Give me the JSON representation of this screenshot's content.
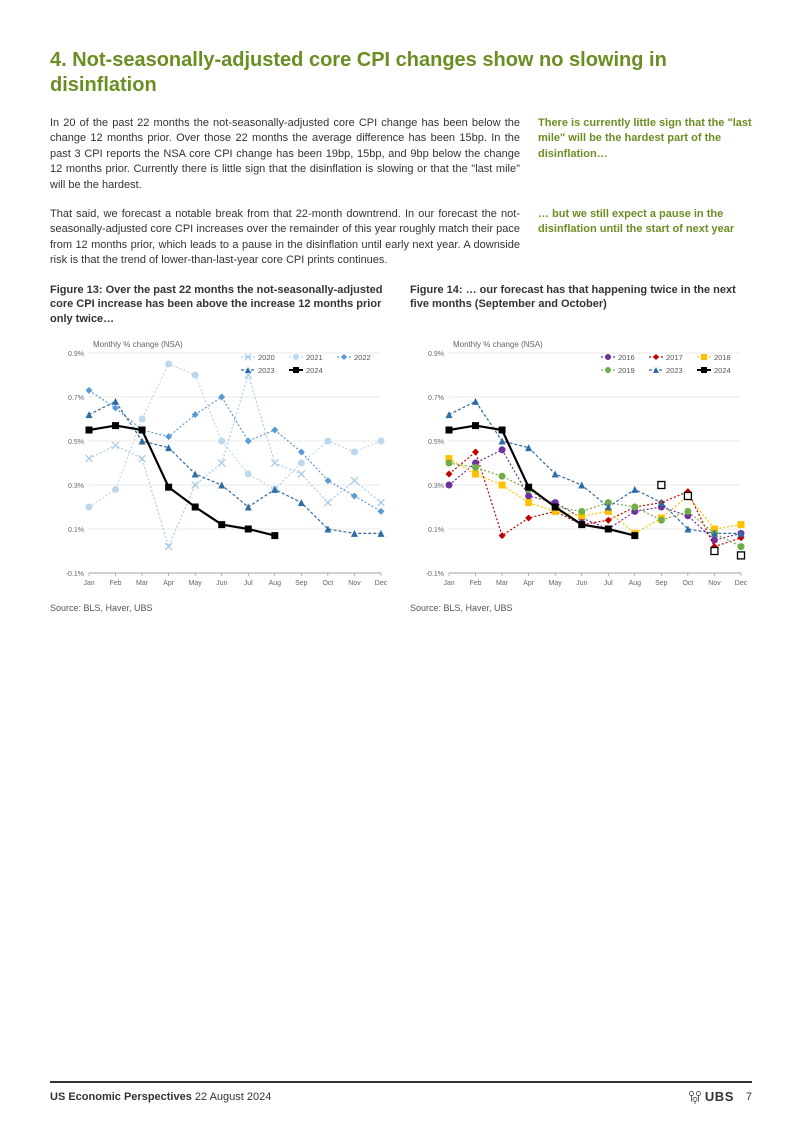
{
  "title": "4. Not-seasonally-adjusted core CPI changes show no slowing in disinflation",
  "para1": "In 20 of the past 22 months the not-seasonally-adjusted core CPI change has been below the change 12 months prior. Over those 22 months the average difference has been 15bp. In the past 3 CPI reports the NSA core CPI change has been 19bp, 15bp, and 9bp below the change 12 months prior. Currently there is little sign that the disinflation is slowing or that the \"last mile\" will be the hardest.",
  "callout1": "There is currently little sign that the \"last mile\" will be the hardest part of the disinflation…",
  "para2": "That said, we forecast a notable break from that 22-month downtrend. In our forecast the not-seasonally-adjusted core CPI increases over the remainder of this year roughly match their pace from 12 months prior, which leads to a pause in the disinflation until early next year. A downside risk is that the trend of lower-than-last-year core CPI prints continues.",
  "callout2": "… but we still expect a pause in the disinflation until the start of next year",
  "fig13": {
    "caption": "Figure 13: Over the past 22 months the not-seasonally-adjusted core CPI increase has been above the increase 12 months prior only twice…",
    "source": "Source: BLS, Haver, UBS",
    "type": "line",
    "ylabel": "Monthly % change (NSA)",
    "ylabel_fontsize": 8,
    "months": [
      "Jan",
      "Feb",
      "Mar",
      "Apr",
      "May",
      "Jun",
      "Jul",
      "Aug",
      "Sep",
      "Oct",
      "Nov",
      "Dec"
    ],
    "ylim": [
      -0.1,
      0.9
    ],
    "ytick_step": 0.2,
    "yticks": [
      "-0.1%",
      "0.1%",
      "0.3%",
      "0.5%",
      "0.7%",
      "0.9%"
    ],
    "grid_color": "#e0e0e0",
    "axis_color": "#888888",
    "tick_fontsize": 7,
    "legend_pos": "top-right",
    "series": {
      "2020": {
        "color": "#a8cce8",
        "marker": "x",
        "dash": "2,2",
        "values": [
          0.42,
          0.48,
          0.42,
          0.02,
          0.3,
          0.4,
          0.8,
          0.4,
          0.35,
          0.22,
          0.32,
          0.22
        ]
      },
      "2021": {
        "color": "#bdd7ec",
        "marker": "circle",
        "dash": "2,2",
        "values": [
          0.2,
          0.28,
          0.6,
          0.85,
          0.8,
          0.5,
          0.35,
          0.28,
          0.4,
          0.5,
          0.45,
          0.5
        ]
      },
      "2022": {
        "color": "#5b9bd5",
        "marker": "diamond",
        "dash": "2,2",
        "values": [
          0.73,
          0.65,
          0.55,
          0.52,
          0.62,
          0.7,
          0.5,
          0.55,
          0.45,
          0.32,
          0.25,
          0.18
        ]
      },
      "2023": {
        "color": "#2e6ca4",
        "marker": "triangle",
        "dash": "3,2",
        "values": [
          0.62,
          0.68,
          0.5,
          0.47,
          0.35,
          0.3,
          0.2,
          0.28,
          0.22,
          0.1,
          0.08,
          0.08
        ]
      },
      "2024": {
        "color": "#000000",
        "marker": "square",
        "dash": "none",
        "values": [
          0.55,
          0.57,
          0.55,
          0.29,
          0.2,
          0.12,
          0.1,
          0.07,
          null,
          null,
          null,
          null
        ]
      }
    },
    "line_width": 1.2,
    "bold_line_width": 2.2,
    "marker_size": 3.5
  },
  "fig14": {
    "caption": "Figure 14: … our forecast has that happening twice in the next five months (September and October)",
    "source": "Source: BLS, Haver, UBS",
    "type": "line",
    "ylabel": "Monthly % change (NSA)",
    "ylabel_fontsize": 8,
    "months": [
      "Jan",
      "Feb",
      "Mar",
      "Apr",
      "May",
      "Jun",
      "Jul",
      "Aug",
      "Sep",
      "Oct",
      "Nov",
      "Dec"
    ],
    "ylim": [
      -0.1,
      0.9
    ],
    "ytick_step": 0.2,
    "yticks": [
      "-0.1%",
      "0.1%",
      "0.3%",
      "0.5%",
      "0.7%",
      "0.9%"
    ],
    "grid_color": "#e0e0e0",
    "axis_color": "#888888",
    "tick_fontsize": 7,
    "legend_pos": "top-right",
    "series": {
      "2016": {
        "color": "#7030a0",
        "marker": "circle",
        "dash": "2,2",
        "values": [
          0.3,
          0.4,
          0.46,
          0.25,
          0.22,
          0.15,
          0.1,
          0.18,
          0.2,
          0.16,
          0.05,
          0.08
        ]
      },
      "2017": {
        "color": "#c00000",
        "marker": "diamond",
        "dash": "2,2",
        "values": [
          0.35,
          0.45,
          0.07,
          0.15,
          0.18,
          0.12,
          0.14,
          0.2,
          0.22,
          0.27,
          0.02,
          0.06
        ]
      },
      "2018": {
        "color": "#ffc000",
        "marker": "square",
        "dash": "2,2",
        "values": [
          0.42,
          0.35,
          0.3,
          0.22,
          0.18,
          0.16,
          0.18,
          0.08,
          0.15,
          0.25,
          0.1,
          0.12
        ]
      },
      "2019": {
        "color": "#70ad47",
        "marker": "circle",
        "dash": "2,2",
        "values": [
          0.4,
          0.38,
          0.34,
          0.28,
          0.2,
          0.18,
          0.22,
          0.2,
          0.14,
          0.18,
          0.08,
          0.02
        ]
      },
      "2023": {
        "color": "#2e6ca4",
        "marker": "triangle",
        "dash": "3,2",
        "values": [
          0.62,
          0.68,
          0.5,
          0.47,
          0.35,
          0.3,
          0.2,
          0.28,
          0.22,
          0.1,
          0.08,
          0.08
        ]
      },
      "2024": {
        "color": "#000000",
        "marker": "square",
        "dash": "none",
        "values": [
          0.55,
          0.57,
          0.55,
          0.29,
          0.2,
          0.12,
          0.1,
          0.07,
          null,
          null,
          null,
          null
        ]
      },
      "2024f": {
        "color": "#000000",
        "marker": "square-open",
        "dash": "none-hidden",
        "values": [
          null,
          null,
          null,
          null,
          null,
          null,
          null,
          null,
          0.3,
          0.25,
          0.0,
          -0.02
        ]
      }
    },
    "line_width": 1.2,
    "bold_line_width": 2.2,
    "marker_size": 3.5
  },
  "footer": {
    "title": "US Economic Perspectives",
    "date": "22 August 2024",
    "brand": "UBS",
    "page": "7"
  }
}
